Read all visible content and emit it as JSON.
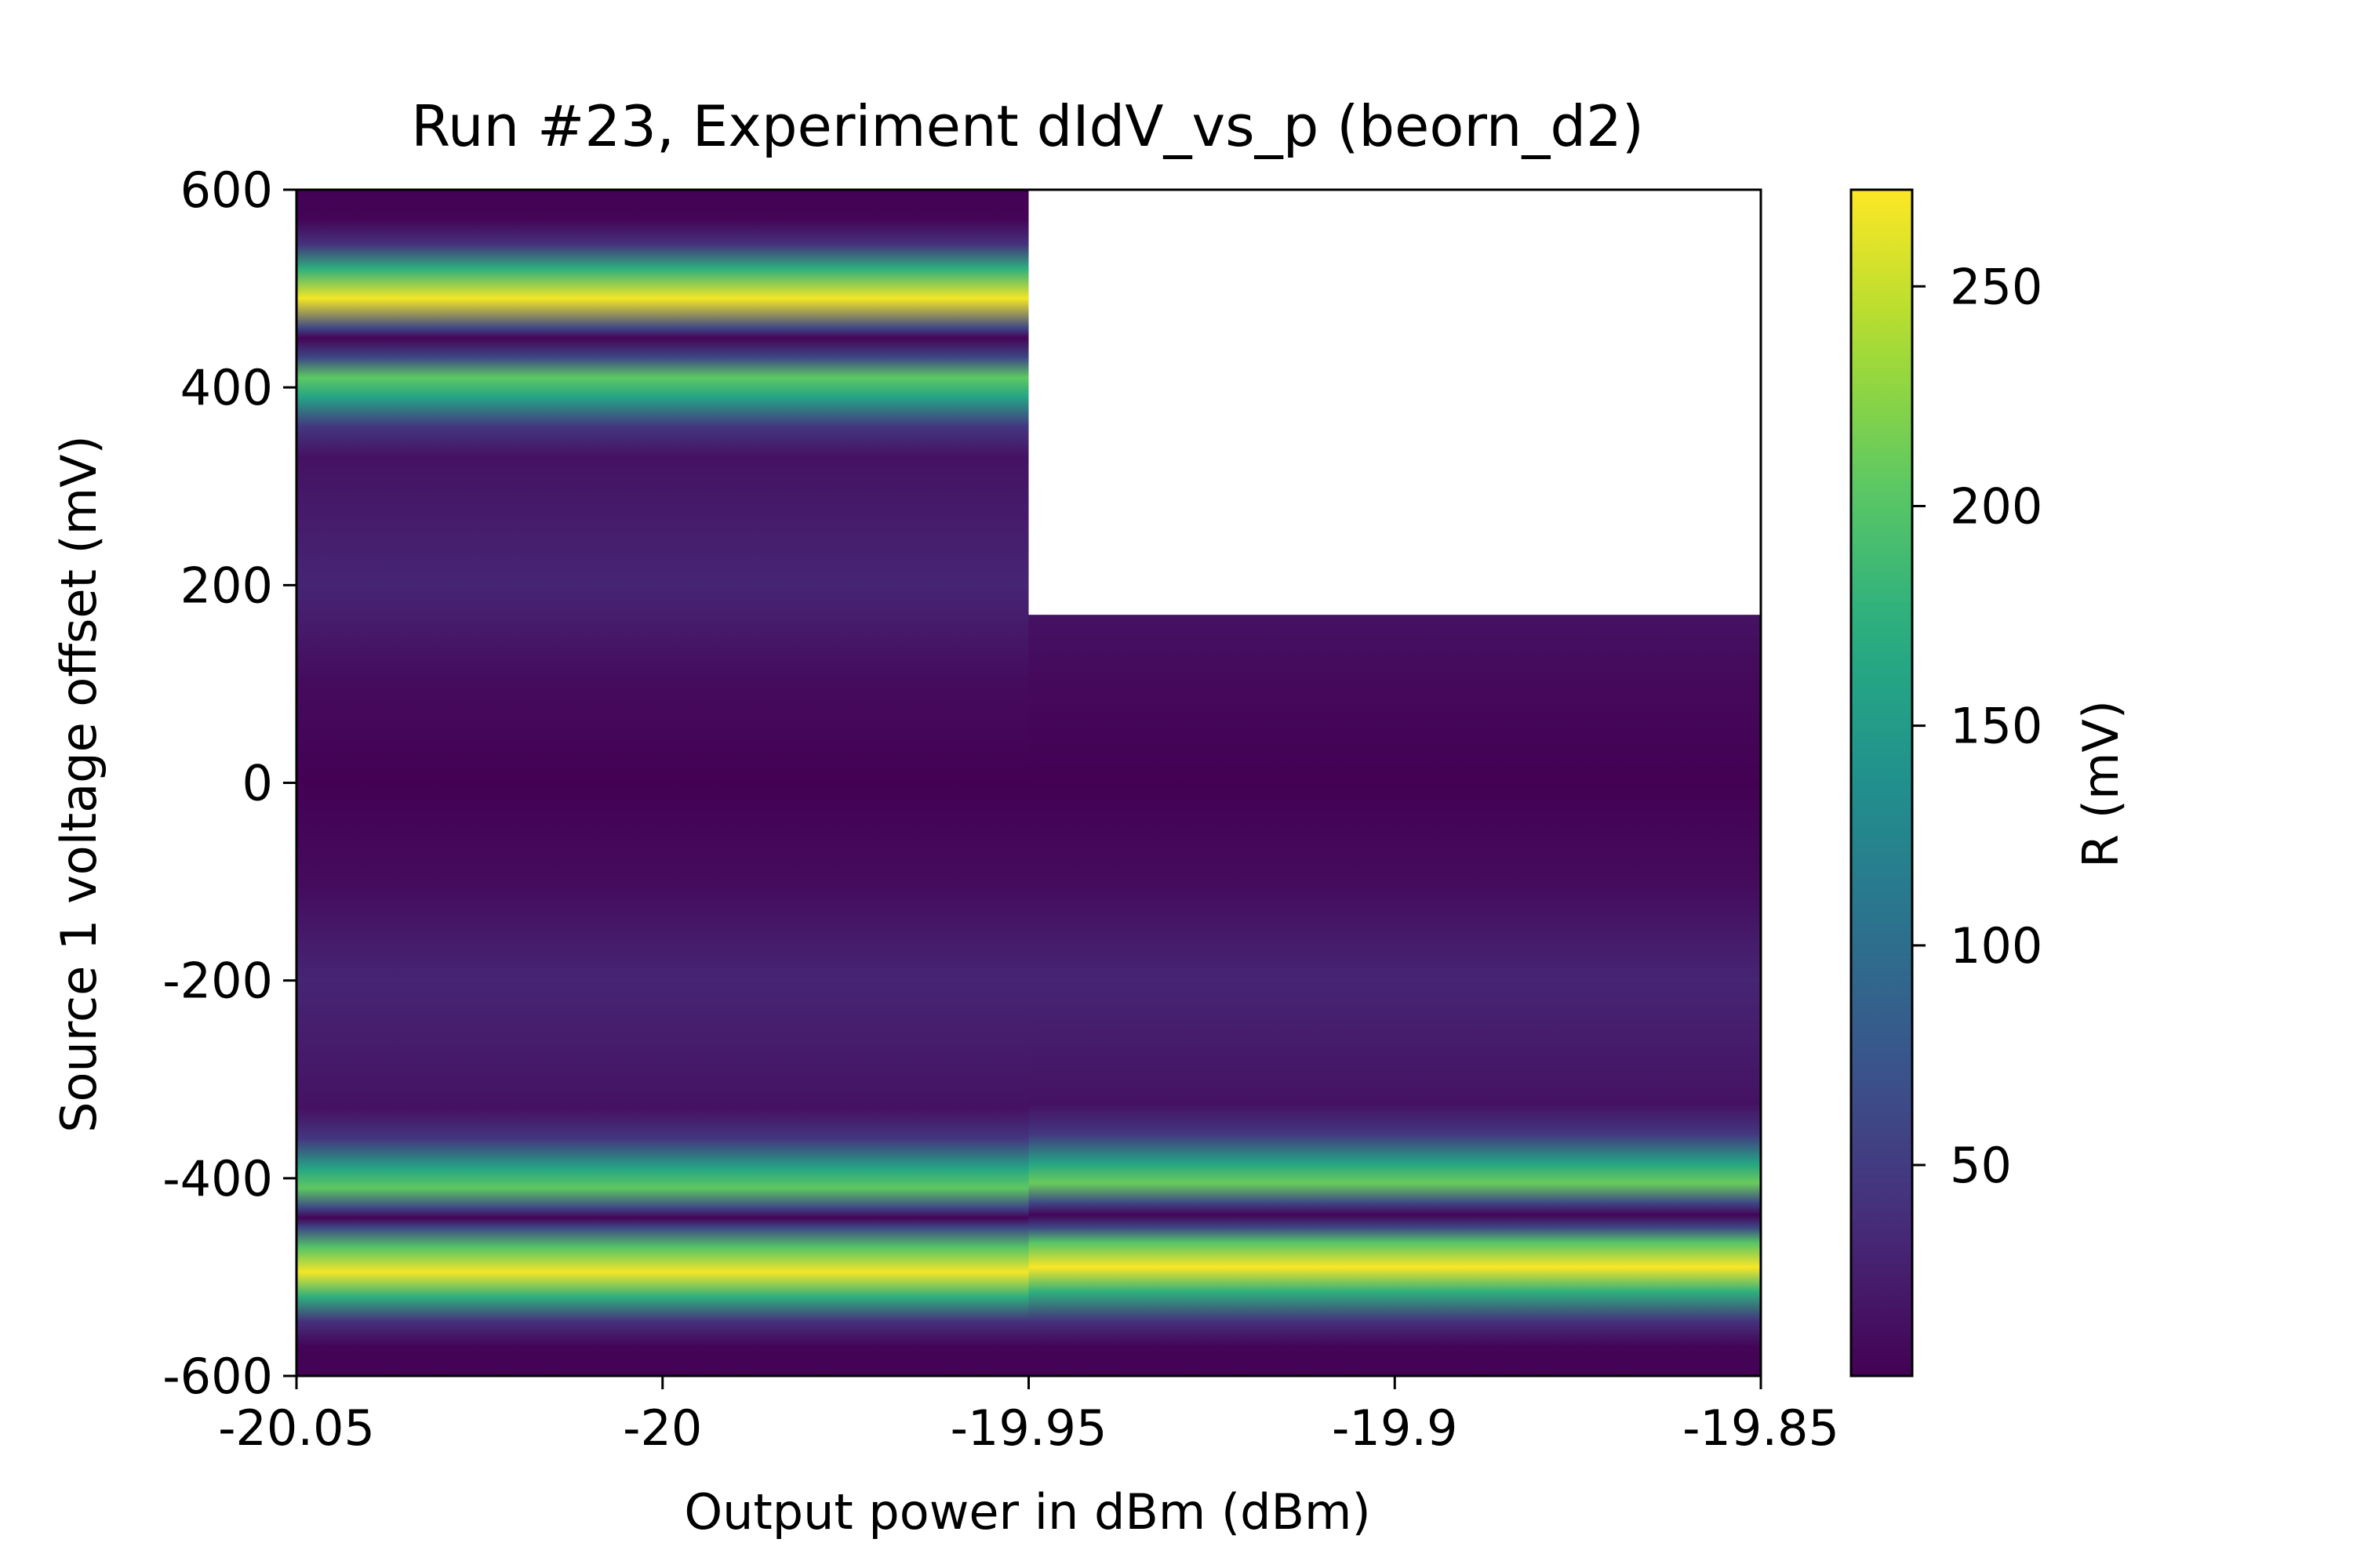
{
  "chart_data": {
    "type": "heatmap",
    "title": "Run #23, Experiment dIdV_vs_p (beorn_d2)",
    "xlabel": "Output power in dBm (dBm)",
    "ylabel": "Source 1 voltage offset (mV)",
    "xlim": [
      -20.05,
      -19.85
    ],
    "ylim": [
      -600,
      600
    ],
    "xticks": [
      {
        "value": -20.05,
        "label": "-20.05"
      },
      {
        "value": -20.0,
        "label": "-20"
      },
      {
        "value": -19.95,
        "label": "-19.95"
      },
      {
        "value": -19.9,
        "label": "-19.9"
      },
      {
        "value": -19.85,
        "label": "-19.85"
      }
    ],
    "yticks": [
      {
        "value": 600,
        "label": "600"
      },
      {
        "value": 400,
        "label": "400"
      },
      {
        "value": 200,
        "label": "200"
      },
      {
        "value": 0,
        "label": "0"
      },
      {
        "value": -200,
        "label": "-200"
      },
      {
        "value": -400,
        "label": "-400"
      },
      {
        "value": -600,
        "label": "-600"
      }
    ],
    "colorbar": {
      "label": "R (mV)",
      "colormap": "viridis",
      "range": [
        2,
        272
      ],
      "ticks": [
        {
          "value": 50,
          "label": "50"
        },
        {
          "value": 100,
          "label": "100"
        },
        {
          "value": 150,
          "label": "150"
        },
        {
          "value": 200,
          "label": "200"
        },
        {
          "value": 250,
          "label": "250"
        }
      ]
    },
    "columns": [
      {
        "x_range": [
          -20.05,
          -19.95
        ],
        "y_range": [
          -600,
          600
        ],
        "profile": [
          {
            "y": -600,
            "value": 3
          },
          {
            "y": -570,
            "value": 5
          },
          {
            "y": -545,
            "value": 40
          },
          {
            "y": -520,
            "value": 175
          },
          {
            "y": -495,
            "value": 268
          },
          {
            "y": -470,
            "value": 200
          },
          {
            "y": -450,
            "value": 60
          },
          {
            "y": -440,
            "value": 5
          },
          {
            "y": -430,
            "value": 60
          },
          {
            "y": -410,
            "value": 205
          },
          {
            "y": -390,
            "value": 160
          },
          {
            "y": -360,
            "value": 45
          },
          {
            "y": -330,
            "value": 15
          },
          {
            "y": -200,
            "value": 30
          },
          {
            "y": -100,
            "value": 10
          },
          {
            "y": 0,
            "value": 2
          },
          {
            "y": 100,
            "value": 10
          },
          {
            "y": 200,
            "value": 30
          },
          {
            "y": 330,
            "value": 15
          },
          {
            "y": 360,
            "value": 45
          },
          {
            "y": 390,
            "value": 160
          },
          {
            "y": 410,
            "value": 205
          },
          {
            "y": 430,
            "value": 60
          },
          {
            "y": 450,
            "value": 5
          },
          {
            "y": 460,
            "value": 60
          },
          {
            "y": 490,
            "value": 268
          },
          {
            "y": 520,
            "value": 175
          },
          {
            "y": 545,
            "value": 40
          },
          {
            "y": 570,
            "value": 5
          },
          {
            "y": 600,
            "value": 3
          }
        ]
      },
      {
        "x_range": [
          -19.95,
          -19.85
        ],
        "y_range": [
          -600,
          170
        ],
        "profile": [
          {
            "y": -600,
            "value": 3
          },
          {
            "y": -570,
            "value": 5
          },
          {
            "y": -545,
            "value": 40
          },
          {
            "y": -515,
            "value": 175
          },
          {
            "y": -490,
            "value": 270
          },
          {
            "y": -465,
            "value": 200
          },
          {
            "y": -450,
            "value": 60
          },
          {
            "y": -437,
            "value": 5
          },
          {
            "y": -425,
            "value": 60
          },
          {
            "y": -405,
            "value": 210
          },
          {
            "y": -385,
            "value": 160
          },
          {
            "y": -355,
            "value": 45
          },
          {
            "y": -325,
            "value": 15
          },
          {
            "y": -200,
            "value": 30
          },
          {
            "y": -100,
            "value": 10
          },
          {
            "y": 0,
            "value": 2
          },
          {
            "y": 100,
            "value": 8
          },
          {
            "y": 170,
            "value": 15
          }
        ]
      }
    ]
  }
}
